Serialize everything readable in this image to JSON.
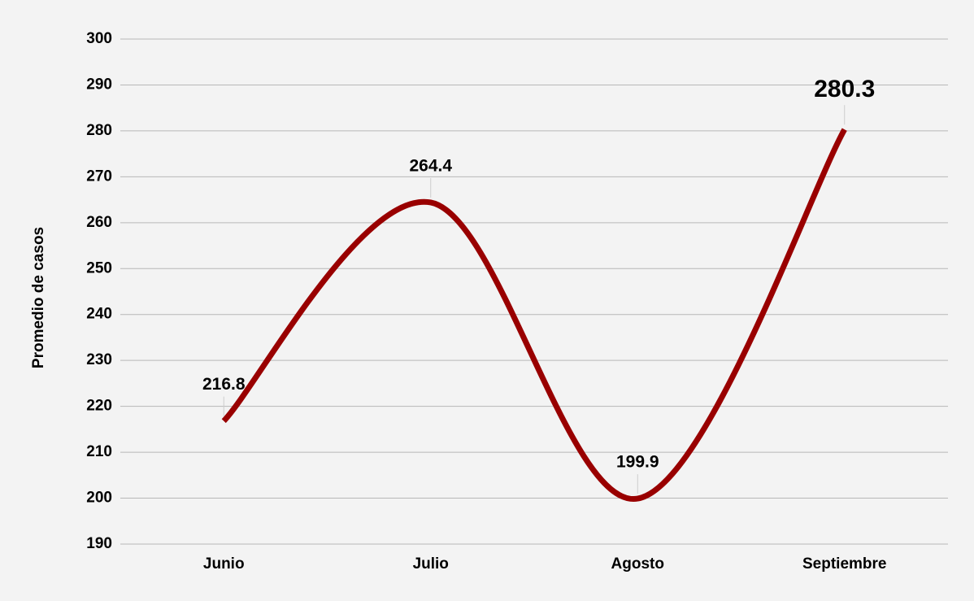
{
  "chart_data": {
    "type": "line",
    "y_label": "Promedio de casos",
    "categories": [
      "Junio",
      "Julio",
      "Agosto",
      "Septiembre"
    ],
    "series": [
      {
        "name": "Promedio de casos",
        "color": "#990000",
        "values": [
          216.8,
          264.4,
          199.9,
          280.3
        ]
      }
    ],
    "value_label_colors": [
      "#2f5597",
      "#38761d",
      "#000000",
      "#990000"
    ],
    "ylim": [
      190,
      300
    ],
    "yticks": [
      190,
      200,
      210,
      220,
      230,
      240,
      250,
      260,
      270,
      280,
      290,
      300
    ],
    "grid": true,
    "smooth": true
  }
}
